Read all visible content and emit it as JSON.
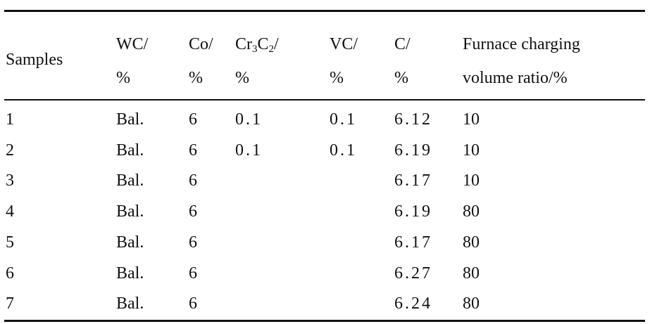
{
  "table": {
    "columns": [
      {
        "lines": [
          [
            {
              "text": "Samples"
            }
          ]
        ]
      },
      {
        "lines": [
          [
            {
              "text": "WC/"
            }
          ],
          [
            {
              "text": "%"
            }
          ]
        ]
      },
      {
        "lines": [
          [
            {
              "text": "Co/"
            }
          ],
          [
            {
              "text": "%"
            }
          ]
        ]
      },
      {
        "lines": [
          [
            {
              "text": "Cr"
            },
            {
              "text": "3",
              "sub": true
            },
            {
              "text": "C"
            },
            {
              "text": "2",
              "sub": true
            },
            {
              "text": "/"
            }
          ],
          [
            {
              "text": "%"
            }
          ]
        ]
      },
      {
        "lines": [
          [
            {
              "text": "VC/"
            }
          ],
          [
            {
              "text": "%"
            }
          ]
        ]
      },
      {
        "lines": [
          [
            {
              "text": "C/"
            }
          ],
          [
            {
              "text": "%"
            }
          ]
        ]
      },
      {
        "lines": [
          [
            {
              "text": "Furnace charging"
            }
          ],
          [
            {
              "text": "volume ratio/%"
            }
          ]
        ]
      }
    ],
    "rows": [
      [
        "1",
        "Bal.",
        "6",
        "0.1",
        "0.1",
        "6.12",
        "10"
      ],
      [
        "2",
        "Bal.",
        "6",
        "0.1",
        "0.1",
        "6.19",
        "10"
      ],
      [
        "3",
        "Bal.",
        "6",
        null,
        null,
        "6.17",
        "10"
      ],
      [
        "4",
        "Bal.",
        "6",
        null,
        null,
        "6.19",
        "80"
      ],
      [
        "5",
        "Bal.",
        "6",
        null,
        null,
        "6.17",
        "80"
      ],
      [
        "6",
        "Bal.",
        "6",
        null,
        null,
        "6.27",
        "80"
      ],
      [
        "7",
        "Bal.",
        "6",
        null,
        null,
        "6.24",
        "80"
      ]
    ]
  }
}
